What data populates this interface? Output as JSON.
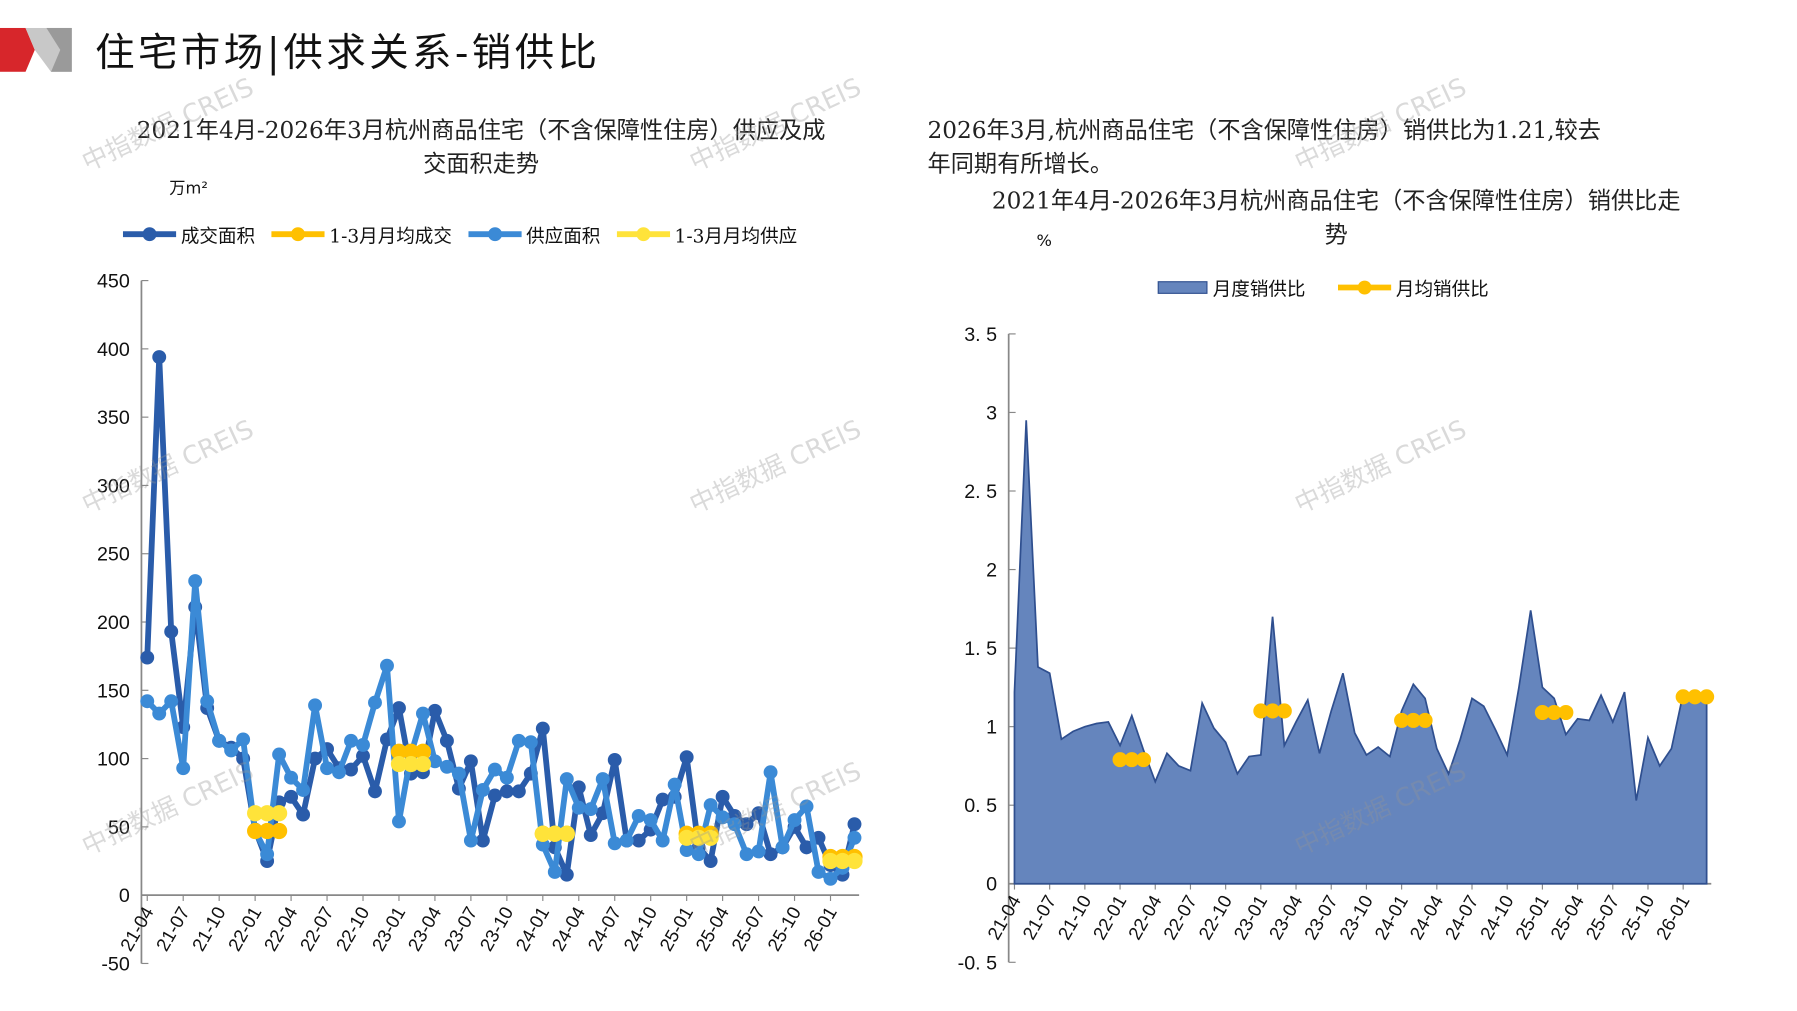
{
  "header": {
    "title": "住宅市场|供求关系-销供比"
  },
  "left": {
    "title_line1": "2021年4月-2026年3月杭州商品住宅（不含保障性住房）供应及成",
    "title_line2": "交面积走势",
    "unit": "万m²",
    "legend": [
      "成交面积",
      "1-3月月均成交",
      "供应面积",
      "1-3月月均供应"
    ]
  },
  "right": {
    "note_line1": "2026年3月,杭州商品住宅（不含保障性住房）销供比为1.21,较去",
    "note_line2": "年同期有所增长。",
    "title_line1": "2021年4月-2026年3月杭州商品住宅（不含保障性住房）销供比走",
    "title_line2": "势",
    "unit": "%",
    "legend": [
      "月度销供比",
      "月均销供比"
    ]
  },
  "watermark": "中指数据 CREIS",
  "colors": {
    "deal": "#2a5caa",
    "supply": "#3b8ad6",
    "deal_avg": "#ffc000",
    "supply_avg": "#ffe33a",
    "ratio": "#6585bd",
    "ratio_line": "#2f4f8f",
    "ratio_avg": "#ffc000"
  },
  "chart_data": [
    {
      "type": "line",
      "title": "2021年4月-2026年3月杭州商品住宅（不含保障性住房）供应及成交面积走势",
      "ylabel": "万m²",
      "ylim": [
        -50,
        450
      ],
      "yticks": [
        -50,
        0,
        50,
        100,
        150,
        200,
        250,
        300,
        350,
        400,
        450
      ],
      "xtick_labels": [
        "21-04",
        "21-07",
        "21-10",
        "22-01",
        "22-04",
        "22-07",
        "22-10",
        "23-01",
        "23-04",
        "23-07",
        "23-10",
        "24-01",
        "24-04",
        "24-07",
        "24-10",
        "25-01",
        "25-04",
        "25-07",
        "25-10",
        "26-01"
      ],
      "series": [
        {
          "name": "成交面积",
          "values": [
            174,
            394,
            193,
            123,
            211,
            137,
            113,
            108,
            100,
            48,
            25,
            68,
            72,
            59,
            100,
            107,
            93,
            92,
            102,
            76,
            114,
            137,
            89,
            90,
            135,
            113,
            78,
            98,
            40,
            73,
            76,
            76,
            89,
            122,
            35,
            15,
            79,
            44,
            60,
            99,
            40,
            40,
            48,
            70,
            72,
            101,
            35,
            25,
            72,
            58,
            52,
            60,
            30,
            35,
            50,
            35,
            42,
            22,
            15,
            52
          ]
        },
        {
          "name": "供应面积",
          "values": [
            142,
            133,
            142,
            93,
            230,
            142,
            113,
            106,
            114,
            47,
            30,
            103,
            86,
            77,
            139,
            93,
            90,
            113,
            110,
            141,
            168,
            54,
            103,
            133,
            98,
            94,
            89,
            40,
            77,
            92,
            86,
            113,
            112,
            37,
            17,
            85,
            64,
            63,
            85,
            38,
            40,
            58,
            55,
            40,
            81,
            33,
            30,
            66,
            57,
            52,
            30,
            32,
            90,
            35,
            55,
            65,
            17,
            12,
            20,
            42
          ]
        },
        {
          "name": "1-3月月均成交",
          "values": {
            "22-01": 47,
            "23-01": 105,
            "24-01": 45,
            "25-01": 45,
            "26-01": 28
          }
        },
        {
          "name": "1-3月月均供应",
          "values": {
            "22-01": 60,
            "23-01": 96,
            "24-01": 45,
            "25-01": 42,
            "26-01": 25
          }
        }
      ]
    },
    {
      "type": "area",
      "title": "2021年4月-2026年3月杭州商品住宅（不含保障性住房）销供比走势",
      "ylabel": "%",
      "ylim": [
        -0.5,
        3.5
      ],
      "yticks": [
        -0.5,
        0,
        0.5,
        1,
        1.5,
        2,
        2.5,
        3,
        3.5
      ],
      "xtick_labels": [
        "21-04",
        "21-07",
        "21-10",
        "22-01",
        "22-04",
        "22-07",
        "22-10",
        "23-01",
        "23-04",
        "23-07",
        "23-10",
        "24-01",
        "24-04",
        "24-07",
        "24-10",
        "25-01",
        "25-04",
        "25-07",
        "25-10",
        "26-01"
      ],
      "series": [
        {
          "name": "月度销供比",
          "values": [
            1.22,
            2.95,
            1.38,
            1.34,
            0.92,
            0.97,
            1.0,
            1.02,
            1.03,
            0.88,
            1.07,
            0.85,
            0.65,
            0.83,
            0.75,
            0.72,
            1.15,
            0.99,
            0.9,
            0.7,
            0.81,
            0.82,
            1.7,
            0.88,
            1.03,
            1.17,
            0.83,
            1.1,
            1.34,
            0.96,
            0.82,
            0.87,
            0.81,
            1.1,
            1.27,
            1.18,
            0.86,
            0.7,
            0.92,
            1.18,
            1.13,
            0.98,
            0.82,
            1.25,
            1.74,
            1.25,
            1.18,
            0.95,
            1.05,
            1.04,
            1.2,
            1.03,
            1.22,
            0.53,
            0.93,
            0.75,
            0.86,
            1.21,
            1.17,
            1.21
          ]
        },
        {
          "name": "月均销供比",
          "values": {
            "22-01": 0.79,
            "23-01": 1.1,
            "24-01": 1.04,
            "25-01": 1.09,
            "26-01": 1.19
          }
        }
      ]
    }
  ]
}
